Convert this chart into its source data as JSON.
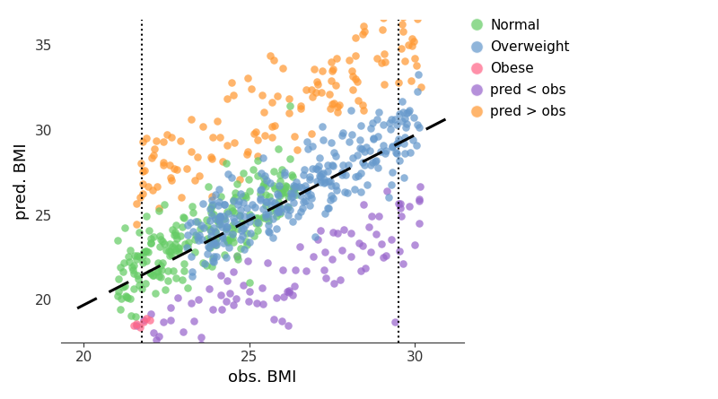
{
  "title": "",
  "xlabel": "obs. BMI",
  "ylabel": "pred. BMI",
  "xlim": [
    19.3,
    31.5
  ],
  "ylim": [
    17.5,
    36.5
  ],
  "xticks": [
    20,
    25,
    30
  ],
  "yticks": [
    20,
    25,
    30,
    35
  ],
  "vline1": 21.75,
  "vline2": 29.5,
  "dashed_line_slope": 1.0,
  "dashed_line_intercept": -0.3,
  "dashed_x0": 19.8,
  "dashed_x1": 31.2,
  "colors": {
    "Normal": "#66CC66",
    "Overweight": "#6699CC",
    "Obese": "#FF6688",
    "pred_lt_obs": "#9966CC",
    "pred_gt_obs": "#FF9933"
  },
  "legend_labels": [
    "Normal",
    "Overweight",
    "Obese",
    "pred < obs",
    "pred > obs"
  ],
  "alpha": 0.72,
  "point_size": 38,
  "background_color": "#ffffff",
  "seed": 42
}
